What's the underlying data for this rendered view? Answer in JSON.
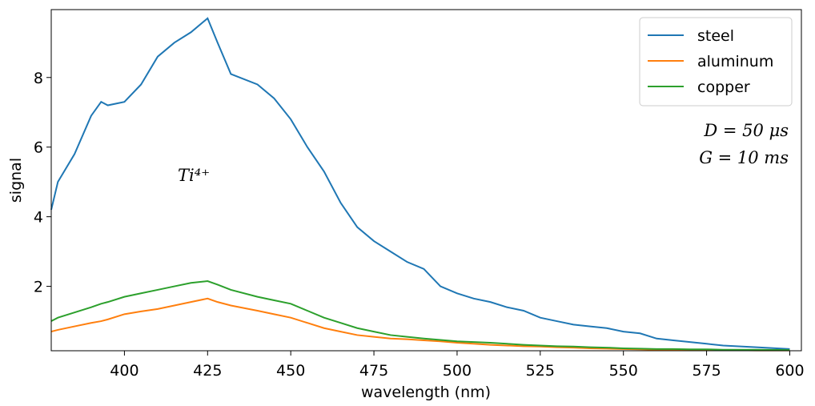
{
  "chart_data": {
    "type": "line",
    "xlabel": "wavelength (nm)",
    "ylabel": "signal",
    "annotations": [
      "Ti⁴⁺",
      "D = 50 μs",
      "G = 10 ms"
    ],
    "x": [
      378,
      380,
      385,
      390,
      393,
      395,
      400,
      405,
      410,
      415,
      420,
      425,
      428,
      432,
      440,
      445,
      450,
      455,
      460,
      465,
      470,
      475,
      480,
      485,
      490,
      495,
      500,
      505,
      510,
      515,
      520,
      525,
      530,
      535,
      540,
      545,
      550,
      555,
      560,
      565,
      570,
      575,
      580,
      590,
      600
    ],
    "series": [
      {
        "name": "steel",
        "color": "#1f77b4",
        "values": [
          4.2,
          5.0,
          5.8,
          6.9,
          7.3,
          7.2,
          7.3,
          7.8,
          8.6,
          9.0,
          9.3,
          9.7,
          9.0,
          8.1,
          7.8,
          7.4,
          6.8,
          6.0,
          5.3,
          4.4,
          3.7,
          3.3,
          3.0,
          2.7,
          2.5,
          2.0,
          1.8,
          1.65,
          1.55,
          1.4,
          1.3,
          1.1,
          1.0,
          0.9,
          0.85,
          0.8,
          0.7,
          0.65,
          0.5,
          0.45,
          0.4,
          0.35,
          0.3,
          0.25,
          0.2
        ]
      },
      {
        "name": "aluminum",
        "color": "#ff7f0e",
        "values": [
          0.7,
          0.75,
          0.85,
          0.95,
          1.0,
          1.05,
          1.2,
          1.28,
          1.35,
          1.45,
          1.55,
          1.65,
          1.55,
          1.45,
          1.3,
          1.2,
          1.1,
          0.95,
          0.8,
          0.7,
          0.6,
          0.55,
          0.5,
          0.48,
          0.45,
          0.42,
          0.38,
          0.35,
          0.32,
          0.3,
          0.28,
          0.27,
          0.25,
          0.24,
          0.22,
          0.21,
          0.2,
          0.19,
          0.18,
          0.18,
          0.17,
          0.17,
          0.17,
          0.16,
          0.16
        ]
      },
      {
        "name": "copper",
        "color": "#2ca02c",
        "values": [
          1.0,
          1.1,
          1.25,
          1.4,
          1.5,
          1.55,
          1.7,
          1.8,
          1.9,
          2.0,
          2.1,
          2.15,
          2.05,
          1.9,
          1.7,
          1.6,
          1.5,
          1.3,
          1.1,
          0.95,
          0.8,
          0.7,
          0.6,
          0.55,
          0.5,
          0.46,
          0.42,
          0.4,
          0.38,
          0.35,
          0.32,
          0.3,
          0.28,
          0.27,
          0.25,
          0.24,
          0.22,
          0.21,
          0.2,
          0.2,
          0.19,
          0.19,
          0.18,
          0.18,
          0.17
        ]
      }
    ],
    "xlim": [
      378,
      603.5
    ],
    "ylim": [
      0.15,
      9.95
    ],
    "xticks": [
      400,
      425,
      450,
      475,
      500,
      525,
      550,
      575,
      600
    ],
    "yticks": [
      2,
      4,
      6,
      8
    ],
    "legend": "upper right",
    "grid": false
  }
}
